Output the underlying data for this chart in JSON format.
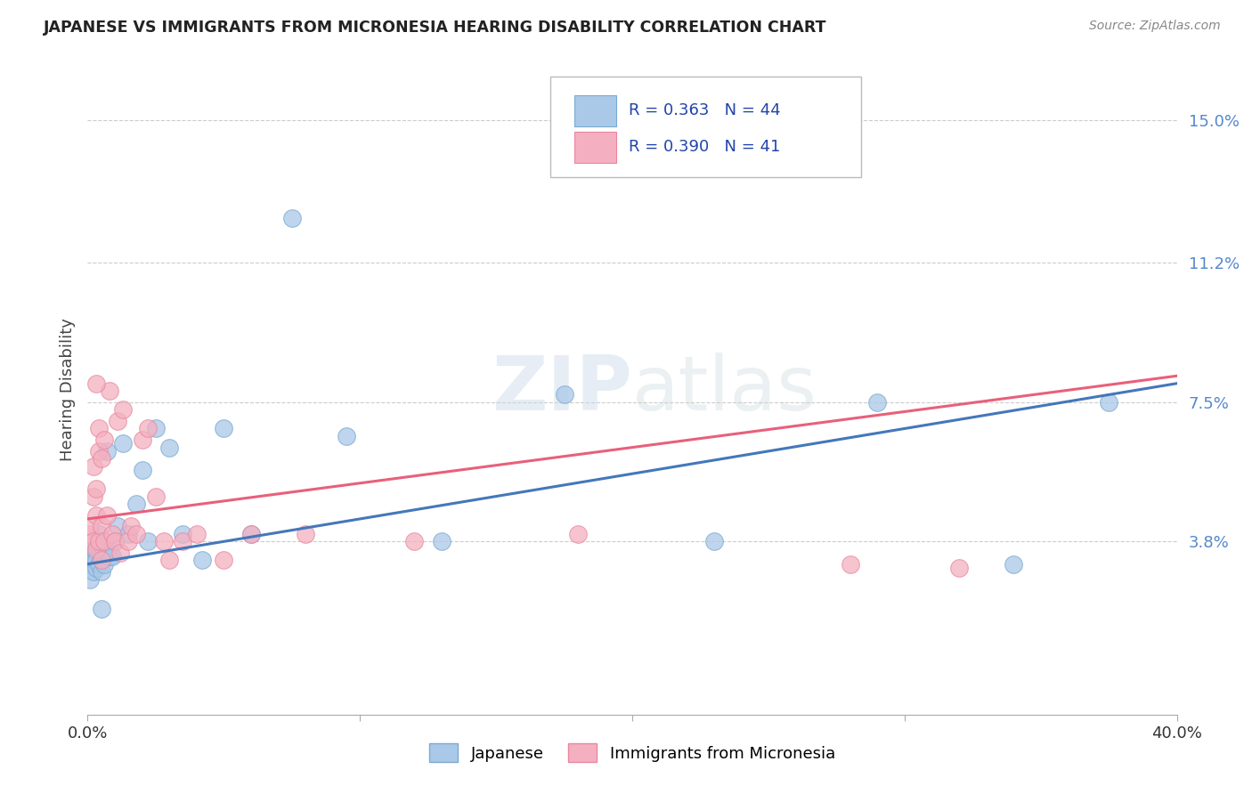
{
  "title": "JAPANESE VS IMMIGRANTS FROM MICRONESIA HEARING DISABILITY CORRELATION CHART",
  "source": "Source: ZipAtlas.com",
  "ylabel": "Hearing Disability",
  "ytick_labels": [
    "3.8%",
    "7.5%",
    "11.2%",
    "15.0%"
  ],
  "ytick_values": [
    0.038,
    0.075,
    0.112,
    0.15
  ],
  "xlim": [
    0.0,
    0.4
  ],
  "ylim": [
    -0.008,
    0.165
  ],
  "blue_scatter_color": "#aac8e8",
  "blue_edge_color": "#7aaad0",
  "pink_scatter_color": "#f4b0c0",
  "pink_edge_color": "#e888a0",
  "blue_line_color": "#4477bb",
  "pink_line_color": "#e8607a",
  "blue_line_x": [
    0.0,
    0.4
  ],
  "blue_line_y": [
    0.032,
    0.08
  ],
  "pink_line_x": [
    0.0,
    0.4
  ],
  "pink_line_y": [
    0.044,
    0.082
  ],
  "japanese_x": [
    0.001,
    0.001,
    0.001,
    0.002,
    0.002,
    0.002,
    0.003,
    0.003,
    0.003,
    0.003,
    0.004,
    0.004,
    0.004,
    0.005,
    0.005,
    0.005,
    0.006,
    0.006,
    0.007,
    0.007,
    0.008,
    0.009,
    0.01,
    0.011,
    0.013,
    0.015,
    0.018,
    0.02,
    0.022,
    0.025,
    0.03,
    0.035,
    0.042,
    0.05,
    0.06,
    0.075,
    0.095,
    0.13,
    0.175,
    0.23,
    0.29,
    0.34,
    0.375,
    0.005
  ],
  "japanese_y": [
    0.032,
    0.034,
    0.028,
    0.033,
    0.036,
    0.03,
    0.038,
    0.035,
    0.031,
    0.033,
    0.036,
    0.032,
    0.04,
    0.034,
    0.037,
    0.03,
    0.038,
    0.032,
    0.062,
    0.035,
    0.034,
    0.034,
    0.038,
    0.042,
    0.064,
    0.04,
    0.048,
    0.057,
    0.038,
    0.068,
    0.063,
    0.04,
    0.033,
    0.068,
    0.04,
    0.124,
    0.066,
    0.038,
    0.077,
    0.038,
    0.075,
    0.032,
    0.075,
    0.02
  ],
  "micronesia_x": [
    0.001,
    0.001,
    0.002,
    0.002,
    0.002,
    0.003,
    0.003,
    0.003,
    0.004,
    0.004,
    0.004,
    0.005,
    0.005,
    0.006,
    0.006,
    0.007,
    0.008,
    0.009,
    0.01,
    0.011,
    0.012,
    0.013,
    0.015,
    0.016,
    0.018,
    0.02,
    0.022,
    0.025,
    0.028,
    0.03,
    0.035,
    0.04,
    0.05,
    0.06,
    0.08,
    0.12,
    0.18,
    0.28,
    0.32,
    0.003,
    0.005
  ],
  "micronesia_y": [
    0.04,
    0.042,
    0.05,
    0.058,
    0.038,
    0.052,
    0.045,
    0.036,
    0.068,
    0.062,
    0.038,
    0.042,
    0.06,
    0.065,
    0.038,
    0.045,
    0.078,
    0.04,
    0.038,
    0.07,
    0.035,
    0.073,
    0.038,
    0.042,
    0.04,
    0.065,
    0.068,
    0.05,
    0.038,
    0.033,
    0.038,
    0.04,
    0.033,
    0.04,
    0.04,
    0.038,
    0.04,
    0.032,
    0.031,
    0.08,
    0.033
  ]
}
